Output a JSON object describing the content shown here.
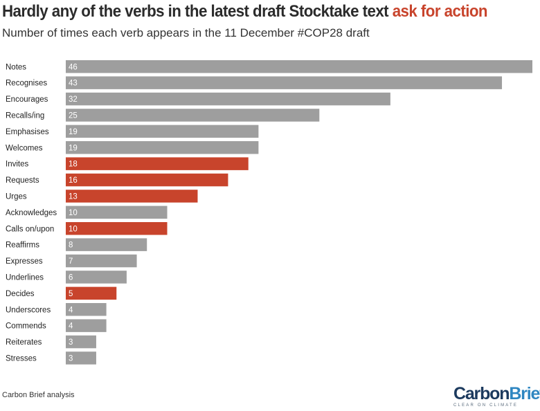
{
  "header": {
    "title_main": "Hardly any of the verbs in the latest draft Stocktake text ",
    "title_accent": "ask for action",
    "subtitle": "Number of times each verb appears in the 11 December #COP28 draft"
  },
  "footer": {
    "source": "Carbon Brief analysis",
    "logo_part1": "Carbon",
    "logo_part2": "Brief",
    "logo_tagline": "CLEAR ON CLIMATE"
  },
  "colors": {
    "neutral": "#9e9e9e",
    "action": "#c8442c"
  },
  "chart_data": {
    "type": "bar",
    "orientation": "horizontal",
    "categories": [
      "Notes",
      "Recognises",
      "Encourages",
      "Recalls/ing",
      "Emphasises",
      "Welcomes",
      "Invites",
      "Requests",
      "Urges",
      "Acknowledges",
      "Calls on/upon",
      "Reaffirms",
      "Expresses",
      "Underlines",
      "Decides",
      "Underscores",
      "Commends",
      "Reiterates",
      "Stresses"
    ],
    "values": [
      46,
      43,
      32,
      25,
      19,
      19,
      18,
      16,
      13,
      10,
      10,
      8,
      7,
      6,
      5,
      4,
      4,
      3,
      3
    ],
    "highlight": [
      false,
      false,
      false,
      false,
      false,
      false,
      true,
      true,
      true,
      false,
      true,
      false,
      false,
      false,
      true,
      false,
      false,
      false,
      false
    ],
    "xlim": [
      0,
      46
    ],
    "grid": false,
    "data_labels": true
  }
}
